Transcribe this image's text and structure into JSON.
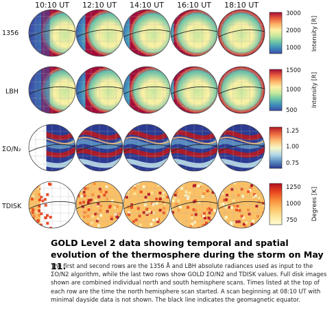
{
  "figure": {
    "columns": [
      "10:10 UT",
      "12:10 UT",
      "14:10 UT",
      "16:10 UT",
      "18:10 UT"
    ],
    "rows": [
      {
        "label": "1356",
        "colorbar_ticks": [
          "3000",
          "2000",
          "1000"
        ],
        "colorbar_title": "Intensity [R]",
        "colormap": "spectral"
      },
      {
        "label": "LBH",
        "colorbar_ticks": [
          "1500",
          "1000",
          "500"
        ],
        "colorbar_title": "Intensity [R]",
        "colormap": "spectral"
      },
      {
        "label": "ΣO/N₂",
        "colorbar_ticks": [
          "1.25",
          "1.00",
          "0.75"
        ],
        "colorbar_title": "",
        "colormap": "rdylbu"
      },
      {
        "label": "TDISK",
        "colorbar_ticks": [
          "1250",
          "1000",
          "750"
        ],
        "colorbar_title": "Degrees [K]",
        "colormap": "ylorrd"
      }
    ],
    "colors": {
      "spectral": [
        "#3a4ea8",
        "#3f8fbd",
        "#6ec6a6",
        "#c7e89e",
        "#fdf1a4",
        "#fbb066",
        "#ea5a3b",
        "#a30d3a"
      ],
      "rdylbu": [
        "#2b3a92",
        "#5a8fc2",
        "#b5d8e8",
        "#f7f7c6",
        "#fdbf75",
        "#ed6a3f",
        "#b11a26"
      ],
      "ylorrd": [
        "#fefdd4",
        "#fde69a",
        "#fcc064",
        "#f98a3a",
        "#e8431f",
        "#b01020"
      ],
      "coastline": "#b0b0b0",
      "equator": "#222222"
    }
  },
  "caption": {
    "title": "GOLD Level 2 data showing temporal and spatial evolution of the thermosphere during the storm on May 11.",
    "body": "The first and second rows are the 1356 Å and LBH absolute radiances used as input to the ΣO/N2 algorithm, while the last two rows show GOLD ΣO/N2 and TDISK values. Full disk images shown are combined individual north and south hemisphere scans. Times listed at the top of each row are the time the north hemisphere scan started. A scan beginning at 08:10 UT with minimal dayside data is not shown. The black line indicates the geomagnetic equator."
  }
}
